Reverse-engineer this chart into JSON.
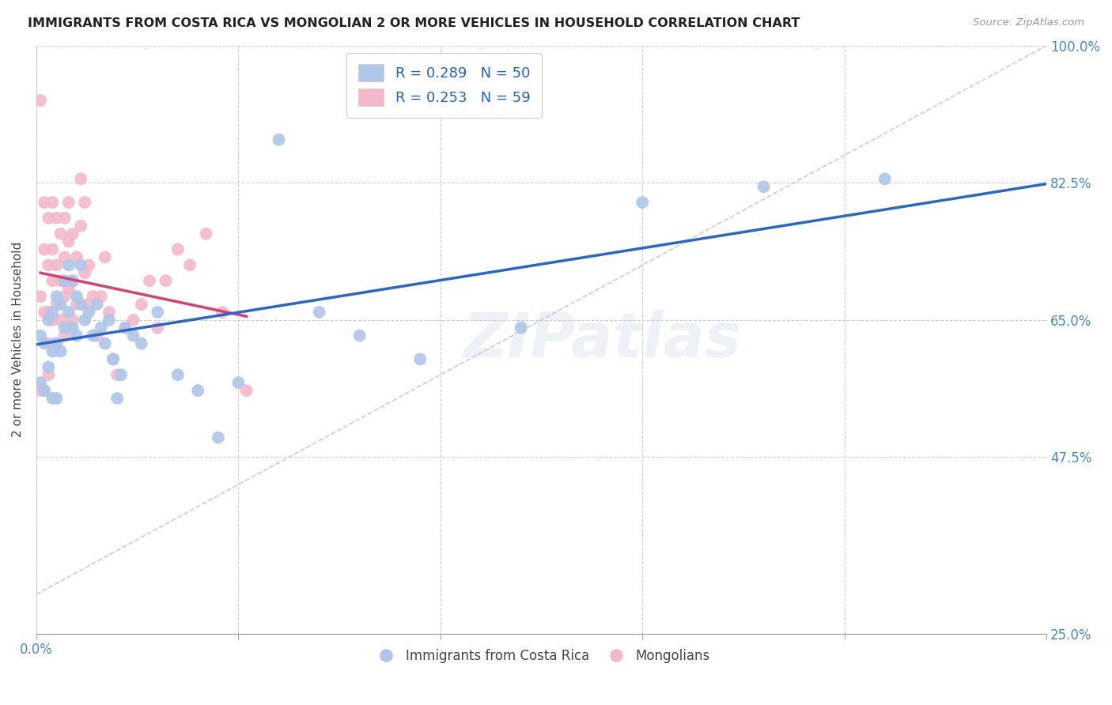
{
  "title": "IMMIGRANTS FROM COSTA RICA VS MONGOLIAN 2 OR MORE VEHICLES IN HOUSEHOLD CORRELATION CHART",
  "source": "Source: ZipAtlas.com",
  "ylabel": "2 or more Vehicles in Household",
  "xmin": 0.0,
  "xmax": 0.25,
  "ymin": 0.25,
  "ymax": 1.0,
  "xticks": [
    0.0,
    0.05,
    0.1,
    0.15,
    0.2,
    0.25
  ],
  "ytick_positions": [
    0.25,
    0.475,
    0.65,
    0.825,
    1.0
  ],
  "yticklabels": [
    "25.0%",
    "47.5%",
    "65.0%",
    "82.5%",
    "100.0%"
  ],
  "blue_R": 0.289,
  "blue_N": 50,
  "pink_R": 0.253,
  "pink_N": 59,
  "blue_color": "#aec6e8",
  "pink_color": "#f5b8c8",
  "blue_line_color": "#2866c8",
  "pink_line_color": "#d84070",
  "diag_color": "#ccbbbb",
  "legend_R_color": "#2060d0",
  "watermark": "ZIPatlas",
  "blue_x": [
    0.001,
    0.001,
    0.002,
    0.002,
    0.003,
    0.003,
    0.004,
    0.004,
    0.004,
    0.005,
    0.005,
    0.005,
    0.006,
    0.006,
    0.007,
    0.007,
    0.008,
    0.008,
    0.009,
    0.009,
    0.01,
    0.01,
    0.011,
    0.011,
    0.012,
    0.013,
    0.014,
    0.015,
    0.016,
    0.017,
    0.018,
    0.019,
    0.02,
    0.021,
    0.022,
    0.024,
    0.026,
    0.03,
    0.035,
    0.04,
    0.045,
    0.05,
    0.06,
    0.07,
    0.08,
    0.095,
    0.12,
    0.15,
    0.18,
    0.21
  ],
  "blue_y": [
    0.63,
    0.57,
    0.62,
    0.56,
    0.65,
    0.59,
    0.66,
    0.61,
    0.55,
    0.68,
    0.62,
    0.55,
    0.67,
    0.61,
    0.7,
    0.64,
    0.72,
    0.66,
    0.7,
    0.64,
    0.68,
    0.63,
    0.72,
    0.67,
    0.65,
    0.66,
    0.63,
    0.67,
    0.64,
    0.62,
    0.65,
    0.6,
    0.55,
    0.58,
    0.64,
    0.63,
    0.62,
    0.66,
    0.58,
    0.56,
    0.5,
    0.57,
    0.88,
    0.66,
    0.63,
    0.6,
    0.64,
    0.8,
    0.82,
    0.83
  ],
  "pink_x": [
    0.001,
    0.001,
    0.001,
    0.002,
    0.002,
    0.002,
    0.002,
    0.003,
    0.003,
    0.003,
    0.003,
    0.003,
    0.004,
    0.004,
    0.004,
    0.004,
    0.005,
    0.005,
    0.005,
    0.005,
    0.006,
    0.006,
    0.006,
    0.007,
    0.007,
    0.007,
    0.007,
    0.008,
    0.008,
    0.008,
    0.009,
    0.009,
    0.009,
    0.01,
    0.01,
    0.011,
    0.011,
    0.012,
    0.012,
    0.013,
    0.013,
    0.014,
    0.015,
    0.016,
    0.017,
    0.018,
    0.019,
    0.02,
    0.022,
    0.024,
    0.026,
    0.028,
    0.03,
    0.032,
    0.035,
    0.038,
    0.042,
    0.046,
    0.052
  ],
  "pink_y": [
    0.93,
    0.68,
    0.56,
    0.8,
    0.74,
    0.66,
    0.56,
    0.78,
    0.72,
    0.66,
    0.62,
    0.58,
    0.8,
    0.74,
    0.7,
    0.65,
    0.78,
    0.72,
    0.67,
    0.62,
    0.76,
    0.7,
    0.65,
    0.78,
    0.73,
    0.68,
    0.63,
    0.8,
    0.75,
    0.69,
    0.76,
    0.7,
    0.65,
    0.73,
    0.67,
    0.83,
    0.77,
    0.8,
    0.71,
    0.72,
    0.67,
    0.68,
    0.63,
    0.68,
    0.73,
    0.66,
    0.6,
    0.58,
    0.64,
    0.65,
    0.67,
    0.7,
    0.64,
    0.7,
    0.74,
    0.72,
    0.76,
    0.66,
    0.56
  ]
}
